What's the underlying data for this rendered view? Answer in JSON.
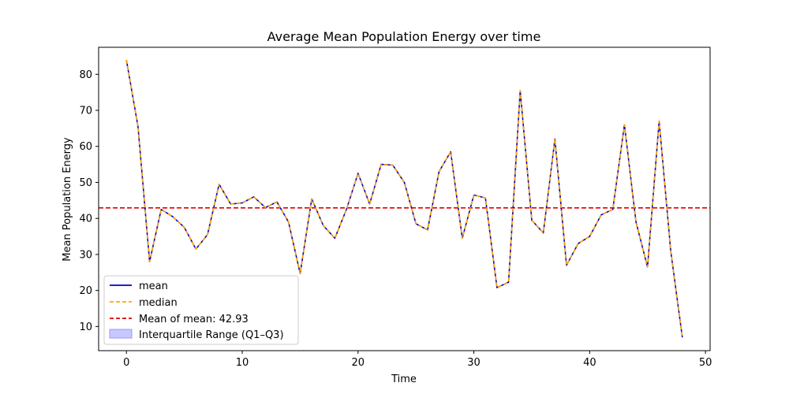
{
  "chart_data": {
    "type": "line",
    "title": "Average Mean Population Energy over time",
    "xlabel": "Time",
    "ylabel": "Mean Population Energy",
    "xlim": [
      -2.4,
      50.4
    ],
    "ylim": [
      3.3,
      87.5
    ],
    "xticks": [
      0,
      10,
      20,
      30,
      40,
      50
    ],
    "yticks": [
      10,
      20,
      30,
      40,
      50,
      60,
      70,
      80
    ],
    "grid": false,
    "legend_position": "lower-left",
    "x": [
      0,
      1,
      2,
      3,
      4,
      5,
      6,
      7,
      8,
      9,
      10,
      11,
      12,
      13,
      14,
      15,
      16,
      17,
      18,
      19,
      20,
      21,
      22,
      23,
      24,
      25,
      26,
      27,
      28,
      29,
      30,
      31,
      32,
      33,
      34,
      35,
      36,
      37,
      38,
      39,
      40,
      41,
      42,
      43,
      44,
      45,
      46,
      47,
      48
    ],
    "series": [
      {
        "name": "mean",
        "color": "#0000cc",
        "style": "solid",
        "values": [
          84,
          65.5,
          28,
          42.5,
          40.5,
          37.5,
          31.5,
          35.5,
          49.5,
          44,
          44.3,
          46,
          43,
          44.6,
          39,
          24.7,
          45.4,
          38,
          34.5,
          42.5,
          52.5,
          44,
          55,
          54.8,
          50,
          38.5,
          36.8,
          53,
          58.5,
          34.5,
          46.5,
          45.7,
          20.8,
          22.3,
          75.5,
          39.5,
          36,
          62,
          27,
          33,
          35,
          41,
          42.5,
          66,
          39,
          26.5,
          67,
          31,
          7
        ]
      },
      {
        "name": "median",
        "color": "#ffa500",
        "style": "dashed",
        "values": [
          84,
          65.5,
          28,
          42.5,
          40.5,
          37.5,
          31.5,
          35.5,
          49.5,
          44,
          44.3,
          46,
          43,
          44.6,
          39,
          24.7,
          45.4,
          38,
          34.5,
          42.5,
          52.5,
          44,
          55,
          54.8,
          50,
          38.5,
          36.8,
          53,
          58.5,
          34.5,
          46.5,
          45.7,
          20.8,
          22.3,
          75.5,
          39.5,
          36,
          62,
          27,
          33,
          35,
          41,
          42.5,
          66,
          39,
          26.5,
          67,
          31,
          7
        ]
      }
    ],
    "hline": {
      "name": "Mean of mean: 42.93",
      "value": 42.93,
      "color": "#e00000",
      "style": "dashed"
    },
    "band": {
      "name": "Interquartile Range (Q1–Q3)",
      "fill": "#c8c8ff",
      "edge": "#9a9aff"
    }
  }
}
